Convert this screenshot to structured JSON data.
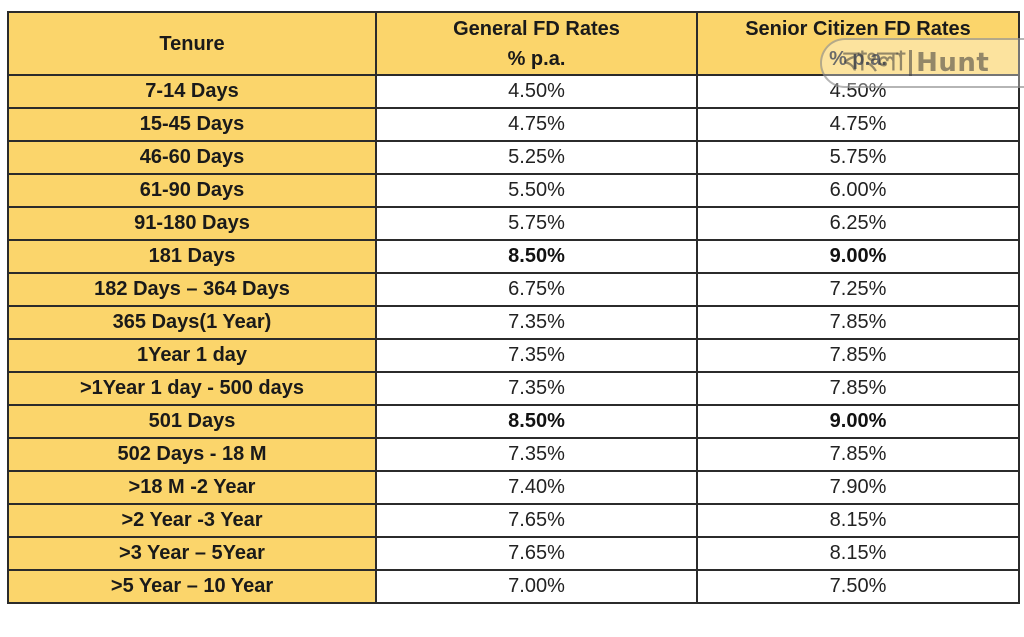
{
  "table": {
    "headers": {
      "tenure": "Tenure",
      "general_line1": "General FD Rates",
      "general_line2": "% p.a.",
      "senior_line1": "Senior Citizen FD Rates",
      "senior_line2": "% p.a."
    },
    "rows": [
      {
        "tenure": "7-14 Days",
        "general": "4.50%",
        "senior": "4.50%",
        "highlight": false
      },
      {
        "tenure": "15-45 Days",
        "general": "4.75%",
        "senior": "4.75%",
        "highlight": false
      },
      {
        "tenure": "46-60 Days",
        "general": "5.25%",
        "senior": "5.75%",
        "highlight": false
      },
      {
        "tenure": "61-90 Days",
        "general": "5.50%",
        "senior": "6.00%",
        "highlight": false
      },
      {
        "tenure": "91-180 Days",
        "general": "5.75%",
        "senior": "6.25%",
        "highlight": false
      },
      {
        "tenure": "181 Days",
        "general": "8.50%",
        "senior": "9.00%",
        "highlight": true
      },
      {
        "tenure": "182 Days – 364 Days",
        "general": "6.75%",
        "senior": "7.25%",
        "highlight": false
      },
      {
        "tenure": "365 Days(1 Year)",
        "general": "7.35%",
        "senior": "7.85%",
        "highlight": false
      },
      {
        "tenure": "1Year 1 day",
        "general": "7.35%",
        "senior": "7.85%",
        "highlight": false
      },
      {
        "tenure": ">1Year 1 day - 500 days",
        "general": "7.35%",
        "senior": "7.85%",
        "highlight": false
      },
      {
        "tenure": "501 Days",
        "general": "8.50%",
        "senior": "9.00%",
        "highlight": true
      },
      {
        "tenure": "502 Days - 18 M",
        "general": "7.35%",
        "senior": "7.85%",
        "highlight": false
      },
      {
        "tenure": ">18 M -2 Year",
        "general": "7.40%",
        "senior": "7.90%",
        "highlight": false
      },
      {
        "tenure": ">2 Year -3 Year",
        "general": "7.65%",
        "senior": "8.15%",
        "highlight": false
      },
      {
        "tenure": ">3 Year – 5Year",
        "general": "7.65%",
        "senior": "8.15%",
        "highlight": false
      },
      {
        "tenure": ">5 Year – 10 Year",
        "general": "7.00%",
        "senior": "7.50%",
        "highlight": false
      }
    ]
  },
  "watermark": {
    "left": "বাংলা",
    "right": "Hunt"
  },
  "colors": {
    "header_bg": "#fbd56b",
    "border": "#2b2b2b"
  }
}
